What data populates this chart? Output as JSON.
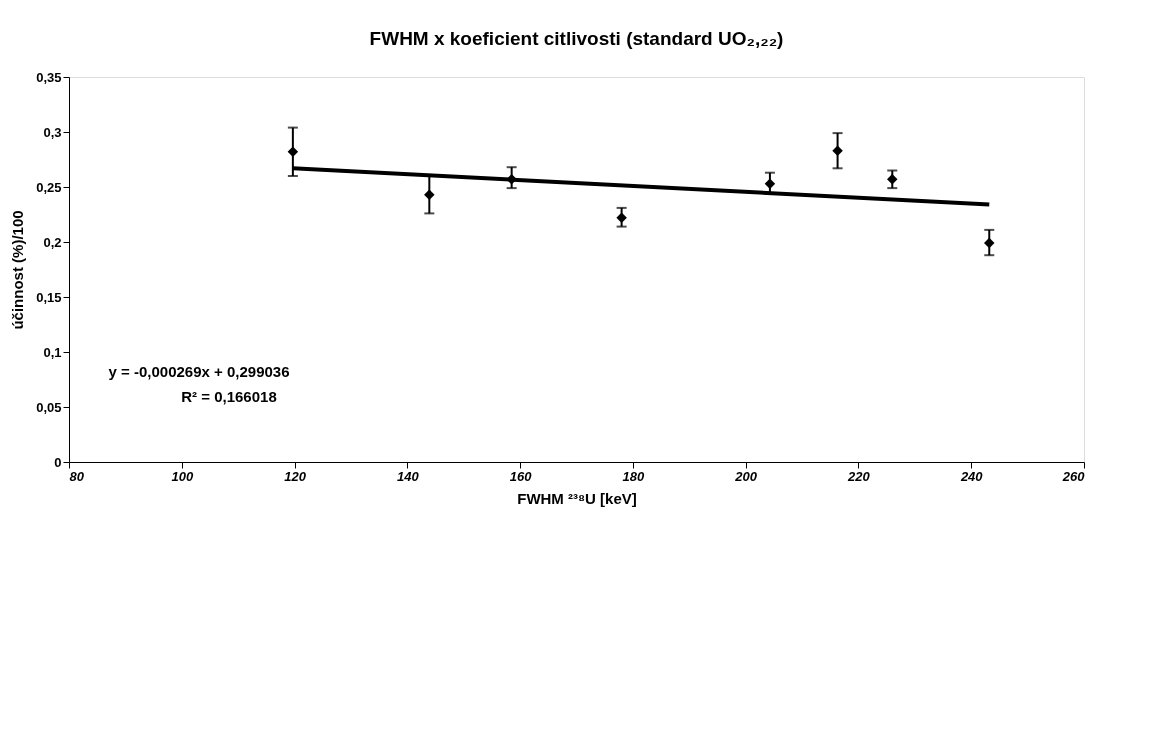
{
  "chart_data": {
    "type": "scatter",
    "title": "FWHM x koeficient citlivosti (standard UO₂,₂₂)",
    "xlabel": "FWHM ²³⁸U [keV]",
    "ylabel": "účinnost (%)/100",
    "annotations": [
      "y = -0,000269x + 0,299036",
      "R² = 0,166018"
    ],
    "xlim": [
      80,
      260
    ],
    "xticks": [
      80,
      100,
      120,
      140,
      160,
      180,
      200,
      220,
      240,
      260
    ],
    "ylim": [
      0,
      0.35
    ],
    "yticks": [
      {
        "value": 0,
        "label": "0"
      },
      {
        "value": 0.05,
        "label": "0,05"
      },
      {
        "value": 0.1,
        "label": "0,1"
      },
      {
        "value": 0.15,
        "label": "0,15"
      },
      {
        "value": 0.2,
        "label": "0,2"
      },
      {
        "value": 0.25,
        "label": "0,25"
      },
      {
        "value": 0.3,
        "label": "0,3"
      },
      {
        "value": 0.35,
        "label": "0,35"
      }
    ],
    "grid": false,
    "marker": "diamond",
    "series": [
      {
        "color": "#000000",
        "x": [
          119.7,
          143.9,
          158.5,
          178.0,
          204.3,
          216.3,
          226.0,
          243.2
        ],
        "values": [
          0.282,
          0.243,
          0.257,
          0.222,
          0.253,
          0.283,
          0.257,
          0.199
        ],
        "errors": [
          [
            0.26,
            0.304
          ],
          [
            0.226,
            0.26
          ],
          [
            0.249,
            0.268
          ],
          [
            0.214,
            0.231
          ],
          [
            0.244,
            0.263
          ],
          [
            0.267,
            0.299
          ],
          [
            0.249,
            0.265
          ],
          [
            0.188,
            0.211
          ]
        ]
      },
      {
        "type": "line",
        "marker": "none",
        "color": "#000000",
        "x": [
          119.7,
          243.2
        ],
        "values": [
          0.267,
          0.234
        ]
      }
    ]
  }
}
